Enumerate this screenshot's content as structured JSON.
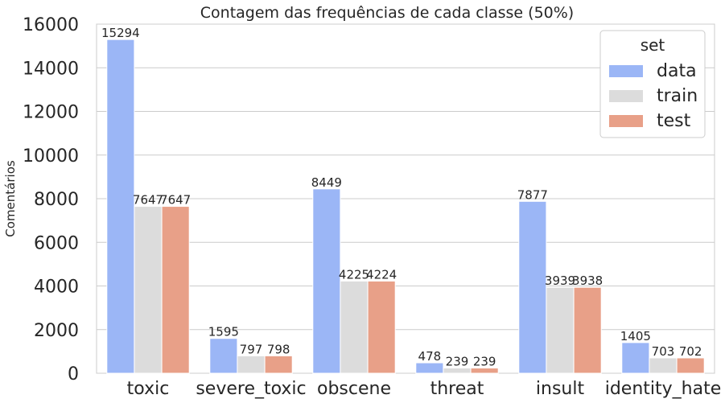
{
  "chart_data": {
    "type": "bar",
    "title": "Contagem das frequências de cada classe (50%)",
    "xlabel": "",
    "ylabel": "Comentários",
    "categories": [
      "toxic",
      "severe_toxic",
      "obscene",
      "threat",
      "insult",
      "identity_hate"
    ],
    "series": [
      {
        "name": "data",
        "color": "#9bb6f6",
        "values": [
          15294,
          1595,
          8449,
          478,
          7877,
          1405
        ]
      },
      {
        "name": "train",
        "color": "#dcdcdc",
        "values": [
          7647,
          797,
          4225,
          239,
          3939,
          703
        ]
      },
      {
        "name": "test",
        "color": "#e8a088",
        "values": [
          7647,
          798,
          4224,
          239,
          3938,
          702
        ]
      }
    ],
    "ylim": [
      0,
      16000
    ],
    "yticks": [
      0,
      2000,
      4000,
      6000,
      8000,
      10000,
      12000,
      14000,
      16000
    ],
    "grid": true,
    "legend": {
      "title": "set",
      "placement": "top-right"
    }
  }
}
